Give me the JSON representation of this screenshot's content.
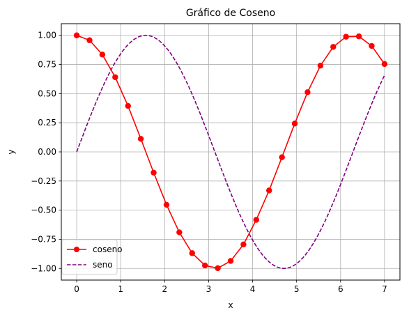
{
  "chart_data": {
    "type": "line",
    "title": "Gráfico de Coseno",
    "xlabel": "x",
    "ylabel": "y",
    "xlim": [
      -0.35,
      7.35
    ],
    "ylim": [
      -1.1,
      1.1
    ],
    "xticks": [
      0,
      1,
      2,
      3,
      4,
      5,
      6,
      7
    ],
    "yticks": [
      -1.0,
      -0.75,
      -0.5,
      -0.25,
      0.0,
      0.25,
      0.5,
      0.75,
      1.0
    ],
    "xtick_labels": [
      "0",
      "1",
      "2",
      "3",
      "4",
      "5",
      "6",
      "7"
    ],
    "ytick_labels": [
      "−1.00",
      "−0.75",
      "−0.50",
      "−0.25",
      "0.00",
      "0.25",
      "0.50",
      "0.75",
      "1.00"
    ],
    "grid": true,
    "legend_position": "lower-left",
    "series": [
      {
        "name": "coseno",
        "style": "solid-with-circle-markers",
        "color": "#ff0000",
        "x": [
          0.0,
          0.292,
          0.583,
          0.875,
          1.167,
          1.458,
          1.75,
          2.042,
          2.333,
          2.625,
          2.917,
          3.208,
          3.5,
          3.792,
          4.083,
          4.375,
          4.667,
          4.958,
          5.25,
          5.542,
          5.833,
          6.125,
          6.417,
          6.708,
          7.0
        ],
        "y": [
          1.0,
          0.958,
          0.835,
          0.641,
          0.394,
          0.112,
          -0.178,
          -0.454,
          -0.69,
          -0.869,
          -0.975,
          -0.998,
          -0.936,
          -0.794,
          -0.583,
          -0.331,
          -0.046,
          0.243,
          0.512,
          0.74,
          0.901,
          0.988,
          0.991,
          0.909,
          0.754
        ]
      },
      {
        "name": "seno",
        "style": "dashed",
        "color": "#800080",
        "function": "sin",
        "x_range": [
          0,
          7
        ]
      }
    ]
  }
}
